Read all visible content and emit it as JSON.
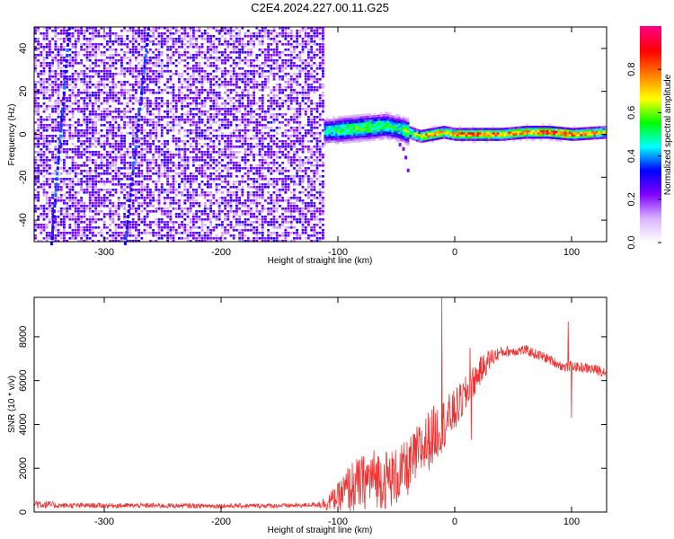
{
  "title": "C2E4.2024.227.00.11.G25",
  "chart_data": [
    {
      "type": "heatmap",
      "xlabel": "Height of straight line (km)",
      "ylabel": "Frequency (Hz)",
      "xlim": [
        -360,
        130
      ],
      "ylim": [
        -50,
        50
      ],
      "xticks": [
        "-300",
        "-200",
        "-100",
        "0",
        "100"
      ],
      "xtick_values": [
        -300,
        -200,
        -100,
        0,
        100
      ],
      "yticks": [
        "-40",
        "-20",
        "0",
        "20",
        "40"
      ],
      "ytick_values": [
        -40,
        -20,
        0,
        20,
        40
      ],
      "colorbar": {
        "label": "Normalized spectral amplitude",
        "range": [
          0,
          1
        ],
        "ticks": [
          "0.0",
          "0.2",
          "0.4",
          "0.6",
          "0.8"
        ],
        "tick_values": [
          0.0,
          0.2,
          0.4,
          0.6,
          0.8
        ],
        "colors": [
          "#ffffff",
          "#d9b3ff",
          "#8000ff",
          "#0000ff",
          "#00ffff",
          "#00ff00",
          "#ffff00",
          "#ff8000",
          "#ff0000",
          "#ff0080"
        ]
      },
      "regions": [
        {
          "name": "noise",
          "x_range": [
            -360,
            -112
          ],
          "freq_range": [
            -50,
            50
          ],
          "amplitude": 0.1
        },
        {
          "name": "signal",
          "x_range": [
            -112,
            130
          ],
          "freq_center": 0,
          "amplitude": 0.8
        }
      ],
      "signal_track": {
        "x": [
          -120,
          -100,
          -80,
          -60,
          -50,
          -40,
          -30,
          -20,
          -10,
          0,
          20,
          40,
          60,
          80,
          100,
          130
        ],
        "freq": [
          1,
          2,
          3,
          4,
          3,
          1,
          -1,
          0,
          1,
          0,
          0,
          0,
          1,
          1,
          0,
          1
        ],
        "amplitude": [
          0.4,
          0.55,
          0.6,
          0.55,
          0.5,
          0.6,
          0.7,
          0.85,
          0.75,
          0.8,
          0.85,
          0.8,
          0.8,
          0.9,
          0.85,
          0.7
        ]
      },
      "streaks": [
        {
          "freq": [
            50,
            -50
          ],
          "x": [
            -330,
            -345
          ]
        },
        {
          "freq": [
            50,
            -50
          ],
          "x": [
            -262,
            -282
          ]
        }
      ]
    },
    {
      "type": "line",
      "xlabel": "Height of straight line (km)",
      "ylabel": "SNR (10 * v/v)",
      "xlim": [
        -360,
        130
      ],
      "ylim": [
        0,
        9800
      ],
      "xticks": [
        "-300",
        "-200",
        "-100",
        "0",
        "100"
      ],
      "xtick_values": [
        -300,
        -200,
        -100,
        0,
        100
      ],
      "yticks": [
        "0",
        "2000",
        "4000",
        "6000",
        "8000"
      ],
      "ytick_values": [
        0,
        2000,
        4000,
        6000,
        8000
      ],
      "color": "#ee3333",
      "envelope": {
        "x": [
          -360,
          -340,
          -300,
          -200,
          -130,
          -110,
          -100,
          -90,
          -80,
          -70,
          -60,
          -50,
          -40,
          -30,
          -20,
          -10,
          0,
          10,
          20,
          30,
          40,
          60,
          80,
          90,
          95,
          100,
          105,
          110,
          120,
          130
        ],
        "y": [
          400,
          300,
          300,
          280,
          300,
          400,
          700,
          1100,
          1300,
          1600,
          1500,
          1600,
          2000,
          2800,
          3400,
          4000,
          4600,
          5400,
          6300,
          7000,
          7300,
          7400,
          7000,
          6700,
          6600,
          6700,
          6600,
          6600,
          6500,
          6400
        ]
      },
      "noise_spread": {
        "x": [
          -360,
          -340,
          -120,
          -100,
          -90,
          -60,
          -40,
          -20,
          0,
          20,
          40,
          100,
          130
        ],
        "y": [
          250,
          120,
          100,
          600,
          1200,
          1400,
          1300,
          1400,
          1000,
          700,
          250,
          220,
          250
        ]
      },
      "spikes": [
        {
          "x": -11,
          "y": 9800
        },
        {
          "x": 97,
          "y": 8700
        },
        {
          "x": 100,
          "y": 4300
        },
        {
          "x": 13,
          "y": 7500
        },
        {
          "x": 14,
          "y": 3300
        }
      ]
    }
  ]
}
